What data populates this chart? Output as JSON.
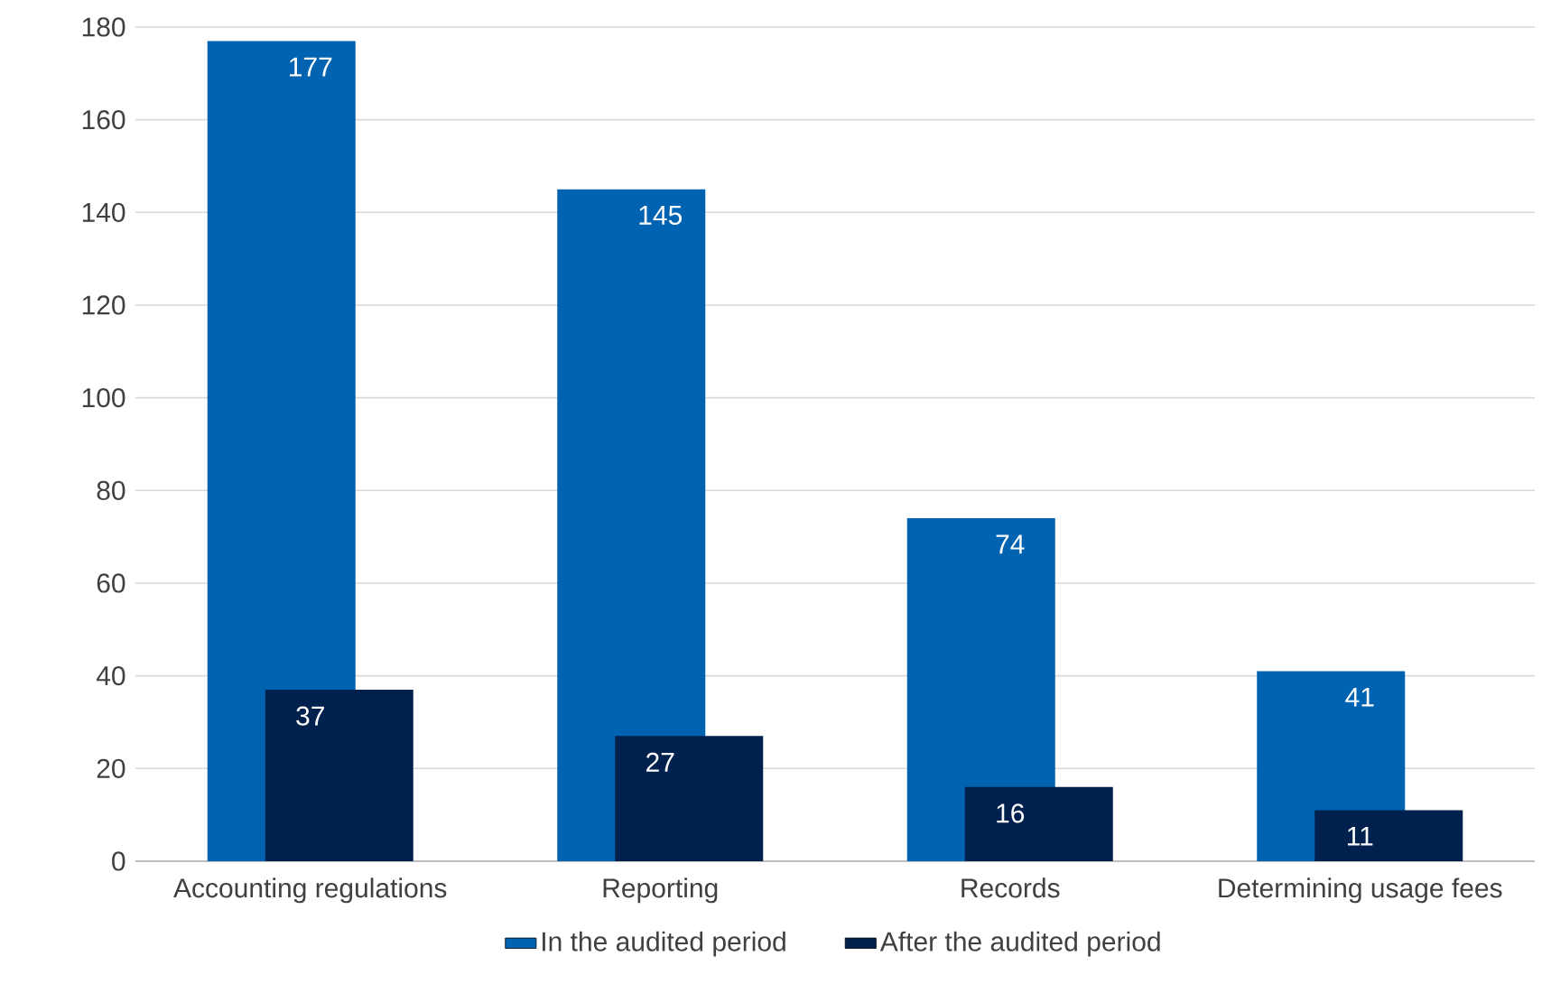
{
  "chart_data": {
    "type": "bar",
    "categories": [
      "Accounting regulations",
      "Reporting",
      "Records",
      "Determining usage fees"
    ],
    "series": [
      {
        "name": "In the audited period",
        "color": "#0063b1",
        "values": [
          177,
          145,
          74,
          41
        ]
      },
      {
        "name": "After the audited period",
        "color": "#00214e",
        "values": [
          37,
          27,
          16,
          11
        ]
      }
    ],
    "ylim": [
      0,
      180
    ],
    "yticks": [
      0,
      20,
      40,
      60,
      80,
      100,
      120,
      140,
      160,
      180
    ],
    "grid": "y",
    "legend": "bottom",
    "data_labels": true
  }
}
